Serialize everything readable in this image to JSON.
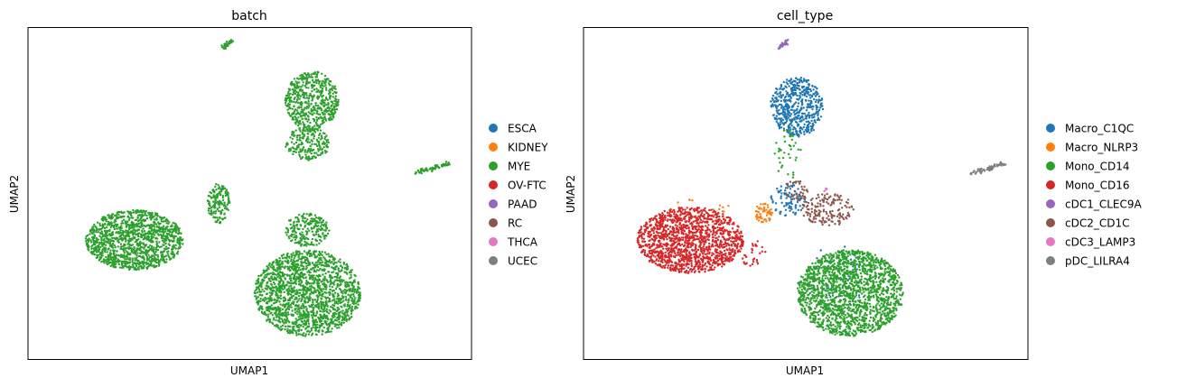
{
  "chart_data": [
    {
      "type": "scatter",
      "title": "batch",
      "xlabel": "UMAP1",
      "ylabel": "UMAP2",
      "grid": false,
      "ticks": false,
      "legend_placement": "right",
      "series": [
        {
          "name": "ESCA",
          "color": "#1f77b4",
          "clusters": []
        },
        {
          "name": "KIDNEY",
          "color": "#ff7f0e",
          "clusters": []
        },
        {
          "name": "MYE",
          "color": "#2ca02c",
          "clusters": [
            {
              "shape": "ellipse",
              "cx": 0.24,
              "cy": 0.64,
              "rx": 0.11,
              "ry": 0.09,
              "n": 1300
            },
            {
              "shape": "ellipse",
              "cx": 0.64,
              "cy": 0.22,
              "rx": 0.06,
              "ry": 0.09,
              "n": 550
            },
            {
              "shape": "ellipse",
              "cx": 0.63,
              "cy": 0.35,
              "rx": 0.05,
              "ry": 0.05,
              "n": 200
            },
            {
              "shape": "ellipse",
              "cx": 0.43,
              "cy": 0.53,
              "rx": 0.025,
              "ry": 0.06,
              "n": 160
            },
            {
              "shape": "ellipse",
              "cx": 0.63,
              "cy": 0.61,
              "rx": 0.05,
              "ry": 0.05,
              "n": 220
            },
            {
              "shape": "ellipse",
              "cx": 0.63,
              "cy": 0.8,
              "rx": 0.12,
              "ry": 0.13,
              "n": 1700
            },
            {
              "shape": "line",
              "x1": 0.44,
              "y1": 0.06,
              "x2": 0.46,
              "y2": 0.04,
              "n": 40
            },
            {
              "shape": "line",
              "x1": 0.87,
              "y1": 0.44,
              "x2": 0.95,
              "y2": 0.41,
              "n": 70
            }
          ]
        },
        {
          "name": "OV-FTC",
          "color": "#d62728",
          "clusters": []
        },
        {
          "name": "PAAD",
          "color": "#9467bd",
          "clusters": []
        },
        {
          "name": "RC",
          "color": "#8c564b",
          "clusters": []
        },
        {
          "name": "THCA",
          "color": "#e377c2",
          "clusters": []
        },
        {
          "name": "UCEC",
          "color": "#7f7f7f",
          "clusters": []
        }
      ]
    },
    {
      "type": "scatter",
      "title": "cell_type",
      "xlabel": "UMAP1",
      "ylabel": "UMAP2",
      "grid": false,
      "ticks": false,
      "legend_placement": "right",
      "series": [
        {
          "name": "Macro_C1QC",
          "color": "#1f77b4",
          "clusters": [
            {
              "shape": "ellipse",
              "cx": 0.48,
              "cy": 0.24,
              "rx": 0.06,
              "ry": 0.09,
              "n": 520
            },
            {
              "shape": "ellipse",
              "cx": 0.46,
              "cy": 0.52,
              "rx": 0.04,
              "ry": 0.05,
              "n": 90
            },
            {
              "shape": "ellipse",
              "cx": 0.56,
              "cy": 0.75,
              "rx": 0.08,
              "ry": 0.1,
              "n": 40
            }
          ]
        },
        {
          "name": "Macro_NLRP3",
          "color": "#ff7f0e",
          "clusters": [
            {
              "shape": "ellipse",
              "cx": 0.405,
              "cy": 0.56,
              "rx": 0.02,
              "ry": 0.03,
              "n": 60
            },
            {
              "shape": "ellipse",
              "cx": 0.26,
              "cy": 0.56,
              "rx": 0.08,
              "ry": 0.05,
              "n": 25
            }
          ]
        },
        {
          "name": "Mono_CD14",
          "color": "#2ca02c",
          "clusters": [
            {
              "shape": "ellipse",
              "cx": 0.6,
              "cy": 0.8,
              "rx": 0.12,
              "ry": 0.13,
              "n": 1750
            },
            {
              "shape": "ellipse",
              "cx": 0.46,
              "cy": 0.38,
              "rx": 0.03,
              "ry": 0.08,
              "n": 40
            }
          ]
        },
        {
          "name": "Mono_CD16",
          "color": "#d62728",
          "clusters": [
            {
              "shape": "ellipse",
              "cx": 0.24,
              "cy": 0.64,
              "rx": 0.12,
              "ry": 0.1,
              "n": 1400
            },
            {
              "shape": "ellipse",
              "cx": 0.38,
              "cy": 0.68,
              "rx": 0.03,
              "ry": 0.04,
              "n": 30
            }
          ]
        },
        {
          "name": "cDC1_CLEC9A",
          "color": "#9467bd",
          "clusters": [
            {
              "shape": "line",
              "x1": 0.44,
              "y1": 0.06,
              "x2": 0.46,
              "y2": 0.04,
              "n": 40
            }
          ]
        },
        {
          "name": "cDC2_CD1C",
          "color": "#8c564b",
          "clusters": [
            {
              "shape": "ellipse",
              "cx": 0.55,
              "cy": 0.55,
              "rx": 0.06,
              "ry": 0.05,
              "n": 160
            },
            {
              "shape": "ellipse",
              "cx": 0.48,
              "cy": 0.49,
              "rx": 0.03,
              "ry": 0.03,
              "n": 40
            }
          ]
        },
        {
          "name": "cDC3_LAMP3",
          "color": "#e377c2",
          "clusters": [
            {
              "shape": "ellipse",
              "cx": 0.545,
              "cy": 0.49,
              "rx": 0.005,
              "ry": 0.006,
              "n": 5
            }
          ]
        },
        {
          "name": "pDC_LILRA4",
          "color": "#7f7f7f",
          "clusters": [
            {
              "shape": "line",
              "x1": 0.87,
              "y1": 0.44,
              "x2": 0.95,
              "y2": 0.41,
              "n": 70
            }
          ]
        }
      ]
    }
  ]
}
